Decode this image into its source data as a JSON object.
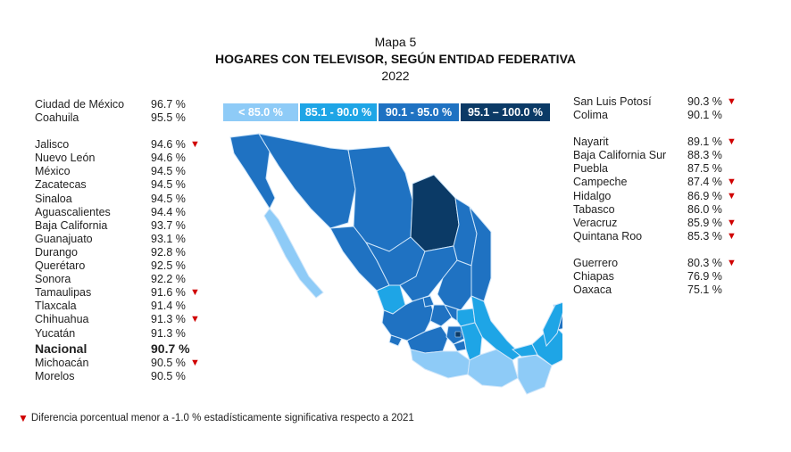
{
  "header": {
    "map_label": "Mapa 5",
    "title": "HOGARES CON TELEVISOR, SEGÚN ENTIDAD FEDERATIVA",
    "year": "2022"
  },
  "legend": [
    {
      "label": "< 85.0 %",
      "color": "#8ecbf7"
    },
    {
      "label": "85.1 - 90.0 %",
      "color": "#1ea5e6"
    },
    {
      "label": "90.1 - 95.0 %",
      "color": "#1f72c2"
    },
    {
      "label": "95.1 – 100.0 %",
      "color": "#0b3a66"
    }
  ],
  "left_groups": [
    [
      {
        "name": "Ciudad de México",
        "value": "96.7 %",
        "decrease": false
      },
      {
        "name": "Coahuila",
        "value": "95.5 %",
        "decrease": false
      }
    ],
    [
      {
        "name": "Jalisco",
        "value": "94.6 %",
        "decrease": true
      },
      {
        "name": "Nuevo León",
        "value": "94.6 %",
        "decrease": false
      },
      {
        "name": "México",
        "value": "94.5 %",
        "decrease": false
      },
      {
        "name": "Zacatecas",
        "value": "94.5 %",
        "decrease": false
      },
      {
        "name": "Sinaloa",
        "value": "94.5 %",
        "decrease": false
      },
      {
        "name": "Aguascalientes",
        "value": "94.4 %",
        "decrease": false
      },
      {
        "name": "Baja California",
        "value": "93.7 %",
        "decrease": false
      },
      {
        "name": "Guanajuato",
        "value": "93.1 %",
        "decrease": false
      },
      {
        "name": "Durango",
        "value": "92.8 %",
        "decrease": false
      },
      {
        "name": "Querétaro",
        "value": "92.5 %",
        "decrease": false
      },
      {
        "name": "Sonora",
        "value": "92.2 %",
        "decrease": false
      },
      {
        "name": "Tamaulipas",
        "value": "91.6 %",
        "decrease": true
      },
      {
        "name": "Tlaxcala",
        "value": "91.4 %",
        "decrease": false
      },
      {
        "name": "Chihuahua",
        "value": "91.3 %",
        "decrease": true
      },
      {
        "name": "Yucatán",
        "value": "91.3 %",
        "decrease": false
      },
      {
        "name": "Nacional",
        "value": "90.7 %",
        "decrease": false,
        "national": true
      },
      {
        "name": "Michoacán",
        "value": "90.5 %",
        "decrease": true
      },
      {
        "name": "Morelos",
        "value": "90.5 %",
        "decrease": false
      }
    ]
  ],
  "right_groups": [
    [
      {
        "name": "San Luis Potosí",
        "value": "90.3 %",
        "decrease": true
      },
      {
        "name": "Colima",
        "value": "90.1 %",
        "decrease": false
      }
    ],
    [
      {
        "name": "Nayarit",
        "value": "89.1 %",
        "decrease": true
      },
      {
        "name": "Baja California Sur",
        "value": "88.3 %",
        "decrease": false
      },
      {
        "name": "Puebla",
        "value": "87.5 %",
        "decrease": false
      },
      {
        "name": "Campeche",
        "value": "87.4 %",
        "decrease": true
      },
      {
        "name": "Hidalgo",
        "value": "86.9 %",
        "decrease": true
      },
      {
        "name": "Tabasco",
        "value": "86.0 %",
        "decrease": false
      },
      {
        "name": "Veracruz",
        "value": "85.9 %",
        "decrease": true
      },
      {
        "name": "Quintana Roo",
        "value": "85.3 %",
        "decrease": true
      }
    ],
    [
      {
        "name": "Guerrero",
        "value": "80.3 %",
        "decrease": true
      },
      {
        "name": "Chiapas",
        "value": "76.9 %",
        "decrease": false
      },
      {
        "name": "Oaxaca",
        "value": "75.1 %",
        "decrease": false
      }
    ]
  ],
  "footnote": "Diferencia porcentual menor a -1.0 % estadísticamente significativa respecto a 2021",
  "decrease_icon": "down-triangle-icon",
  "decrease_color": "#d00000"
}
